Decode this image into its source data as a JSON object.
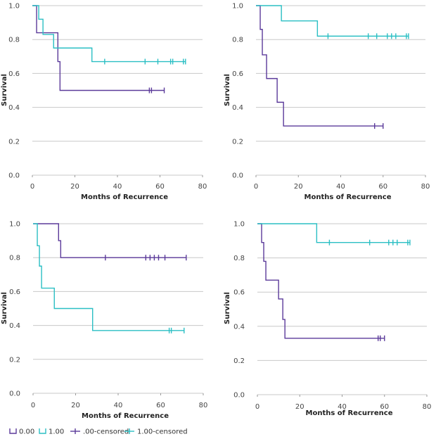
{
  "legend": {
    "items": [
      {
        "label": "0.00",
        "color": "#5b3a9a",
        "kind": "line"
      },
      {
        "label": "1.00",
        "color": "#2bbfc4",
        "kind": "line"
      },
      {
        "label": ".00-censored",
        "color": "#5b3a9a",
        "kind": "censor"
      },
      {
        "label": "1.00-censored",
        "color": "#2bbfc4",
        "kind": "censor"
      }
    ]
  },
  "chart_data": [
    {
      "type": "line",
      "step": true,
      "xlabel": "Months of Recurrence",
      "ylabel": "Survival",
      "xlim": [
        0,
        80
      ],
      "ylim": [
        0,
        1
      ],
      "xticks": [
        "0",
        "20",
        "40",
        "60",
        "80"
      ],
      "yticks": [
        "0.0",
        "0.2",
        "0.4",
        "0.6",
        "0.8",
        "1.0"
      ],
      "grid": true,
      "series": [
        {
          "name": "0.00",
          "color": "#5b3a9a",
          "steps": [
            [
              0,
              1.0
            ],
            [
              2,
              0.84
            ],
            [
              12,
              0.67
            ],
            [
              13,
              0.5
            ]
          ],
          "end_x": 62,
          "censored": [
            55,
            56,
            62
          ]
        },
        {
          "name": "1.00",
          "color": "#2bbfc4",
          "steps": [
            [
              0,
              1.0
            ],
            [
              3,
              0.92
            ],
            [
              5,
              0.83
            ],
            [
              10,
              0.75
            ],
            [
              28,
              0.67
            ]
          ],
          "end_x": 72,
          "censored": [
            34,
            53,
            59,
            65,
            66,
            71,
            72
          ]
        }
      ]
    },
    {
      "type": "line",
      "step": true,
      "xlabel": "Months of Recurrence",
      "ylabel": "Survival",
      "xlim": [
        0,
        80
      ],
      "ylim": [
        0,
        1
      ],
      "xticks": [
        "0",
        "20",
        "40",
        "60",
        "80"
      ],
      "yticks": [
        "0.0",
        "0.2",
        "0.4",
        "0.6",
        "0.8",
        "1.0"
      ],
      "grid": true,
      "series": [
        {
          "name": "0.00",
          "color": "#5b3a9a",
          "steps": [
            [
              0,
              1.0
            ],
            [
              2,
              0.86
            ],
            [
              3,
              0.71
            ],
            [
              5,
              0.57
            ],
            [
              10,
              0.43
            ],
            [
              13,
              0.29
            ]
          ],
          "end_x": 60,
          "censored": [
            56,
            60
          ]
        },
        {
          "name": "1.00",
          "color": "#2bbfc4",
          "steps": [
            [
              0,
              1.0
            ],
            [
              12,
              0.91
            ],
            [
              29,
              0.82
            ]
          ],
          "end_x": 72,
          "censored": [
            34,
            53,
            57,
            62,
            64,
            66,
            71,
            72
          ]
        }
      ]
    },
    {
      "type": "line",
      "step": true,
      "xlabel": "Months of Recurrence",
      "ylabel": "Survival",
      "xlim": [
        0,
        80
      ],
      "ylim": [
        0,
        1
      ],
      "xticks": [
        "0",
        "20",
        "40",
        "60",
        "80"
      ],
      "yticks": [
        "0.0",
        "0.2",
        "0.4",
        "0.6",
        "0.8",
        "1.0"
      ],
      "grid": true,
      "series": [
        {
          "name": "0.00",
          "color": "#5b3a9a",
          "steps": [
            [
              0,
              1.0
            ],
            [
              12,
              0.9
            ],
            [
              13,
              0.8
            ]
          ],
          "end_x": 72,
          "censored": [
            34,
            53,
            55,
            57,
            59,
            62,
            72
          ]
        },
        {
          "name": "1.00",
          "color": "#2bbfc4",
          "steps": [
            [
              0,
              1.0
            ],
            [
              2,
              0.87
            ],
            [
              3,
              0.75
            ],
            [
              4,
              0.62
            ],
            [
              10,
              0.5
            ],
            [
              28,
              0.37
            ]
          ],
          "end_x": 71,
          "censored": [
            64,
            65,
            71
          ]
        }
      ]
    },
    {
      "type": "line",
      "step": true,
      "xlabel": "Months of Recurrence",
      "ylabel": "Survival",
      "xlim": [
        0,
        80
      ],
      "ylim": [
        0,
        1
      ],
      "xticks": [
        "0",
        "20",
        "40",
        "60",
        "80"
      ],
      "yticks": [
        "0.0",
        "0.2",
        "0.4",
        "0.6",
        "0.8",
        "1.0"
      ],
      "grid": true,
      "series": [
        {
          "name": "0.00",
          "color": "#5b3a9a",
          "steps": [
            [
              0,
              1.0
            ],
            [
              2,
              0.89
            ],
            [
              3,
              0.78
            ],
            [
              4,
              0.67
            ],
            [
              10,
              0.56
            ],
            [
              12,
              0.44
            ],
            [
              13,
              0.33
            ]
          ],
          "end_x": 60,
          "censored": [
            57,
            58,
            60
          ]
        },
        {
          "name": "1.00",
          "color": "#2bbfc4",
          "steps": [
            [
              0,
              1.0
            ],
            [
              28,
              0.89
            ]
          ],
          "end_x": 72,
          "censored": [
            34,
            53,
            62,
            64,
            66,
            71,
            72
          ]
        }
      ]
    }
  ]
}
